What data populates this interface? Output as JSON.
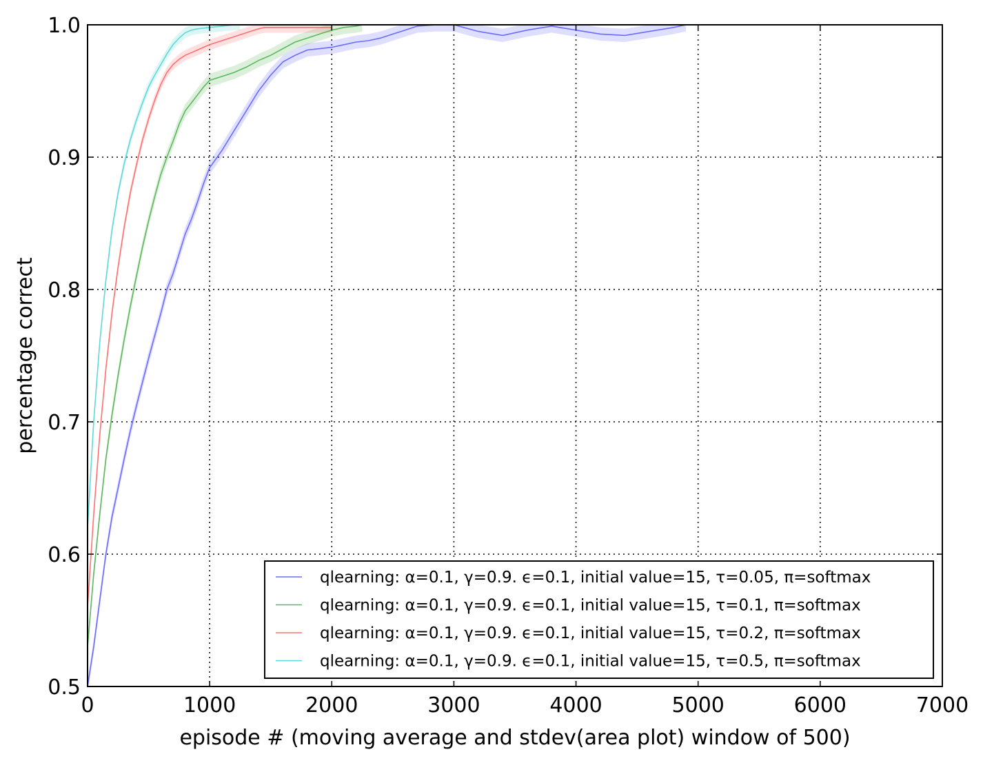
{
  "chart_data": {
    "type": "line",
    "title": "",
    "xlabel": "episode # (moving average and stdev(area plot) window of 500)",
    "ylabel": "percentage correct",
    "xlim": [
      0,
      7000
    ],
    "ylim": [
      0.5,
      1.0
    ],
    "x_ticks": [
      0,
      1000,
      2000,
      3000,
      4000,
      5000,
      6000,
      7000
    ],
    "x_tick_labels": [
      "0",
      "1000",
      "2000",
      "3000",
      "4000",
      "5000",
      "6000",
      "7000"
    ],
    "y_ticks": [
      0.5,
      0.6,
      0.7,
      0.8,
      0.9,
      1.0
    ],
    "y_tick_labels": [
      "0.5",
      "0.6",
      "0.7",
      "0.8",
      "0.9",
      "1.0"
    ],
    "grid": true,
    "legend_position": "lower-right",
    "series": [
      {
        "name": "qlearning: α=0.1, γ=0.9. ϵ=0.1, initial value=15, τ=0.05, π=softmax",
        "color": "#6b6bff",
        "band": 0.005,
        "x": [
          0,
          50,
          100,
          150,
          200,
          250,
          300,
          350,
          400,
          450,
          500,
          550,
          600,
          650,
          700,
          750,
          800,
          850,
          900,
          950,
          1000,
          1100,
          1200,
          1300,
          1400,
          1500,
          1600,
          1700,
          1800,
          1900,
          2000,
          2100,
          2200,
          2300,
          2400,
          2500,
          2600,
          2700,
          2850,
          3000,
          3200,
          3400,
          3600,
          3800,
          4000,
          4200,
          4400,
          4600,
          4800,
          4900
        ],
        "y": [
          0.5,
          0.53,
          0.565,
          0.6,
          0.628,
          0.65,
          0.672,
          0.693,
          0.712,
          0.73,
          0.748,
          0.765,
          0.782,
          0.8,
          0.812,
          0.827,
          0.842,
          0.853,
          0.866,
          0.88,
          0.892,
          0.905,
          0.92,
          0.935,
          0.95,
          0.962,
          0.972,
          0.977,
          0.981,
          0.982,
          0.983,
          0.985,
          0.987,
          0.988,
          0.99,
          0.993,
          0.996,
          0.999,
          1.0,
          1.0,
          0.995,
          0.992,
          0.996,
          0.999,
          0.996,
          0.993,
          0.992,
          0.995,
          0.998,
          1.0
        ]
      },
      {
        "name": "qlearning: α=0.1, γ=0.9. ϵ=0.1, initial value=15, τ=0.1, π=softmax",
        "color": "#5cb85c",
        "band": 0.005,
        "x": [
          0,
          50,
          100,
          150,
          200,
          250,
          300,
          350,
          400,
          450,
          500,
          550,
          600,
          650,
          700,
          750,
          800,
          850,
          900,
          950,
          1000,
          1100,
          1200,
          1300,
          1400,
          1500,
          1600,
          1700,
          1800,
          1900,
          2000,
          2100,
          2200,
          2250
        ],
        "y": [
          0.53,
          0.585,
          0.63,
          0.672,
          0.705,
          0.735,
          0.762,
          0.787,
          0.81,
          0.832,
          0.852,
          0.87,
          0.887,
          0.9,
          0.912,
          0.925,
          0.935,
          0.941,
          0.947,
          0.953,
          0.958,
          0.961,
          0.964,
          0.968,
          0.973,
          0.977,
          0.982,
          0.987,
          0.99,
          0.993,
          0.996,
          0.998,
          0.999,
          1.0
        ]
      },
      {
        "name": "qlearning: α=0.1, γ=0.9. ϵ=0.1, initial value=15, τ=0.2, π=softmax",
        "color": "#ff7070",
        "band": 0.004,
        "x": [
          0,
          50,
          100,
          150,
          200,
          250,
          300,
          350,
          400,
          450,
          500,
          550,
          600,
          650,
          700,
          750,
          800,
          850,
          900,
          950,
          1000,
          1100,
          1200,
          1300,
          1400,
          1450,
          1500,
          1600,
          1800,
          2000
        ],
        "y": [
          0.56,
          0.63,
          0.69,
          0.74,
          0.782,
          0.817,
          0.847,
          0.873,
          0.894,
          0.913,
          0.929,
          0.943,
          0.955,
          0.964,
          0.97,
          0.974,
          0.977,
          0.979,
          0.981,
          0.983,
          0.985,
          0.988,
          0.991,
          0.994,
          0.997,
          0.998,
          0.998,
          0.998,
          0.998,
          0.998
        ]
      },
      {
        "name": "qlearning: α=0.1, γ=0.9. ϵ=0.1, initial value=15, τ=0.5, π=softmax",
        "color": "#5fd8d8",
        "band": 0.004,
        "x": [
          0,
          50,
          100,
          150,
          200,
          250,
          300,
          350,
          400,
          450,
          500,
          550,
          600,
          650,
          700,
          750,
          800,
          850,
          900,
          1000,
          1100,
          1200,
          1250
        ],
        "y": [
          0.62,
          0.7,
          0.76,
          0.807,
          0.845,
          0.873,
          0.895,
          0.913,
          0.928,
          0.941,
          0.953,
          0.962,
          0.97,
          0.978,
          0.985,
          0.99,
          0.994,
          0.996,
          0.997,
          0.998,
          0.999,
          1.0,
          1.0
        ]
      }
    ]
  }
}
